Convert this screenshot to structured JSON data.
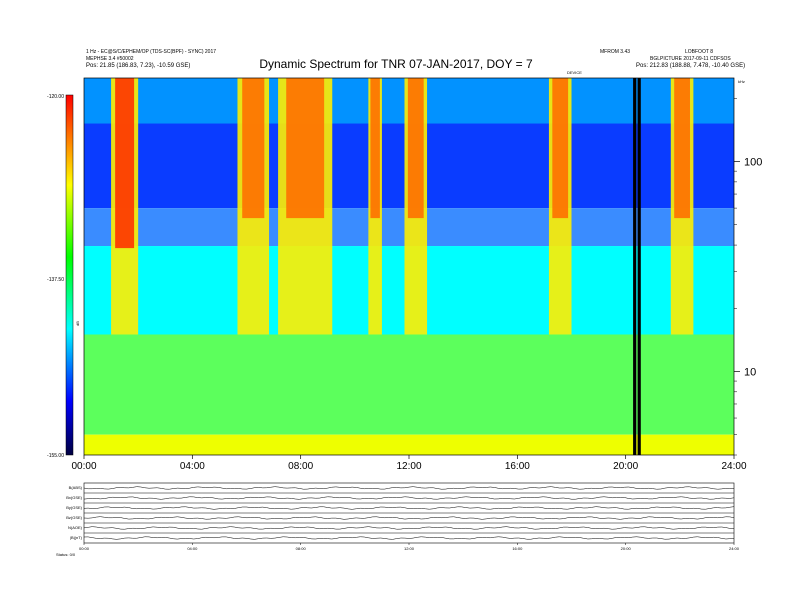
{
  "header": {
    "left_line1": "1 Hz - EC@S/C/EPHEM/OP (TDS-SC(BPF) - SYNC) 2017",
    "left_line2": "MEPHSE 3.4 #50002",
    "left_line3": "Pos: 21.85 (186.83, 7.23), -10.59 GSE)",
    "right_line1a": "MFROM 3.43",
    "right_line1b": "LOBFOOT 8",
    "right_line2": "BGLPICTURE 2017-09-11 CDFSOS",
    "right_line3": "Pos: 212.83 (188.88, 7.478, -10.40 GSE)",
    "mid_note": "DEVICE"
  },
  "title": "Dynamic Spectrum for TNR 07-JAN-2017, DOY = 7",
  "colorbar": {
    "ticks": [
      "-120.00",
      "-137.50",
      "-155.00"
    ],
    "unit_label": "dB",
    "stops": [
      "#ff0000",
      "#ffff00",
      "#00ff00",
      "#00ffff",
      "#0000ff",
      "#000040"
    ]
  },
  "chart_data": {
    "type": "heatmap",
    "title": "Dynamic Spectrum for TNR 07-JAN-2017, DOY = 7",
    "xlabel": "",
    "ylabel": "",
    "x_ticks": [
      "00:00",
      "04:00",
      "08:00",
      "12:00",
      "16:00",
      "20:00",
      "24:00"
    ],
    "xlim_hours": [
      0,
      24
    ],
    "y_scale": "log",
    "y_ticks": [
      10,
      100
    ],
    "y_unit": "kHz",
    "ylim": [
      4,
      250
    ],
    "color_range_db": [
      -155,
      -120
    ],
    "radio_bursts": [
      {
        "start": "01:00",
        "end": "02:00",
        "note": "intense"
      },
      {
        "start": "05:40",
        "end": "06:50"
      },
      {
        "start": "07:10",
        "end": "09:10"
      },
      {
        "start": "10:30",
        "end": "11:00"
      },
      {
        "start": "11:50",
        "end": "12:40"
      },
      {
        "start": "17:10",
        "end": "18:00"
      },
      {
        "start": "21:40",
        "end": "22:30"
      }
    ],
    "data_gaps": [
      "20:20",
      "20:30"
    ],
    "density_profile": [
      {
        "hour": 0,
        "cutoff_khz": 60
      },
      {
        "hour": 4,
        "cutoff_khz": 60
      },
      {
        "hour": 8,
        "cutoff_khz": 60
      },
      {
        "hour": 12,
        "cutoff_khz": 60
      },
      {
        "hour": 16,
        "cutoff_khz": 60
      },
      {
        "hour": 17.2,
        "cutoff_khz": 60
      },
      {
        "hour": 24,
        "cutoff_khz": 60
      }
    ]
  },
  "bottom_panels": {
    "labels": [
      "B(ABS)",
      "Bx(GSE)",
      "By(GSE)",
      "Bz(GSE)",
      "N(AOE)",
      "|B|(nT)"
    ],
    "x_ticks": [
      "00:00",
      "04:00",
      "08:00",
      "12:00",
      "16:00",
      "20:00",
      "24:00"
    ],
    "footer": "Status: 0/0"
  }
}
